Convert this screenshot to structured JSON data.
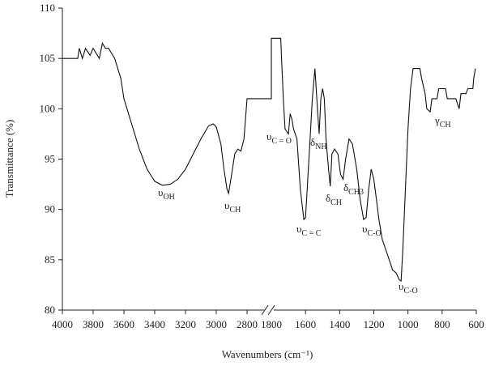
{
  "chart_data": {
    "type": "line",
    "x_label": "Wavenumbers (cm⁻¹)",
    "y_label": "Transmittance (%)",
    "x_segments": [
      {
        "xlim": [
          4000,
          2800
        ],
        "xticks": [
          4000,
          3800,
          3600,
          3400,
          3200,
          3000,
          2800
        ]
      },
      {
        "xlim": [
          1800,
          600
        ],
        "xticks": [
          1800,
          1600,
          1400,
          1200,
          1000,
          800,
          600
        ]
      }
    ],
    "x_break": true,
    "ylim": [
      80,
      110
    ],
    "yticks": [
      80,
      85,
      90,
      95,
      100,
      105,
      110
    ],
    "color": "#111111",
    "x": [
      4000,
      3900,
      3890,
      3870,
      3850,
      3820,
      3800,
      3760,
      3740,
      3720,
      3700,
      3680,
      3660,
      3640,
      3620,
      3600,
      3580,
      3550,
      3500,
      3450,
      3400,
      3350,
      3300,
      3250,
      3200,
      3150,
      3100,
      3050,
      3020,
      3000,
      2970,
      2950,
      2930,
      2920,
      2900,
      2880,
      2860,
      2840,
      2820,
      2800,
      1800,
      1800,
      1745,
      1740,
      1730,
      1720,
      1700,
      1690,
      1680,
      1670,
      1650,
      1630,
      1610,
      1600,
      1580,
      1560,
      1545,
      1530,
      1520,
      1510,
      1500,
      1490,
      1480,
      1465,
      1455,
      1445,
      1430,
      1410,
      1395,
      1380,
      1365,
      1345,
      1325,
      1300,
      1280,
      1260,
      1245,
      1230,
      1215,
      1200,
      1185,
      1170,
      1150,
      1120,
      1090,
      1070,
      1050,
      1040,
      1030,
      1015,
      1000,
      985,
      970,
      930,
      920,
      900,
      890,
      870,
      860,
      830,
      820,
      780,
      770,
      720,
      700,
      690,
      660,
      650,
      620,
      615,
      605
    ],
    "values": [
      105,
      105,
      106,
      105,
      106,
      105.3,
      106,
      105,
      106.5,
      106,
      106,
      105.5,
      105,
      104,
      103,
      101,
      100,
      98.5,
      96,
      94,
      92.8,
      92.4,
      92.5,
      93,
      94,
      95.5,
      97,
      98.3,
      98.5,
      98.2,
      96.5,
      94,
      92,
      91.6,
      93.5,
      95.5,
      96,
      95.8,
      97,
      101,
      101,
      107,
      107,
      105,
      101,
      98,
      97.5,
      99.5,
      99,
      98,
      97,
      92,
      89,
      89.2,
      95,
      101,
      104,
      100,
      97.5,
      101,
      102,
      101,
      97,
      94,
      92.3,
      95.5,
      96,
      95.5,
      93.5,
      93,
      95,
      97,
      96.5,
      94,
      91,
      89,
      89.2,
      92,
      94,
      93,
      91,
      89,
      87,
      85.5,
      84,
      83.7,
      83,
      82.9,
      86,
      92,
      98,
      102,
      104,
      104,
      103,
      101.5,
      100,
      99.7,
      101,
      101,
      102,
      102,
      101,
      101,
      100,
      101.5,
      101.5,
      102,
      102,
      103,
      104
    ],
    "annotations": [
      {
        "symbol": "υ",
        "sub": "OH"
      },
      {
        "symbol": "υ",
        "sub": "CH"
      },
      {
        "symbol": "υ",
        "sub": "C = O"
      },
      {
        "symbol": "δ",
        "sub": "NH"
      },
      {
        "symbol": "δ",
        "sub": "CH"
      },
      {
        "symbol": "δ",
        "sub": "CH3"
      },
      {
        "symbol": "υ",
        "sub": "C = C"
      },
      {
        "symbol": "υ",
        "sub": "C-O"
      },
      {
        "symbol": "υ",
        "sub": "C-O"
      },
      {
        "symbol": "γ",
        "sub": "CH"
      }
    ]
  }
}
